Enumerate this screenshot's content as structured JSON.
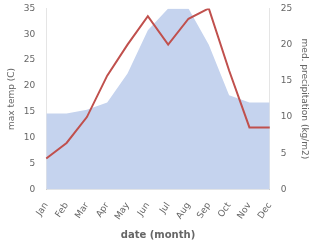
{
  "chart_data": {
    "type": "line",
    "categories": [
      "Jan",
      "Feb",
      "Mar",
      "Apr",
      "May",
      "Jun",
      "Jul",
      "Aug",
      "Sep",
      "Oct",
      "Nov",
      "Dec"
    ],
    "series": [
      {
        "type": "area",
        "color": "#c5d3ee",
        "axis": "y2",
        "values": [
          10.5,
          10.5,
          11.0,
          12.0,
          16.0,
          22.0,
          25.0,
          25.0,
          20.0,
          13.0,
          12.0,
          12.0
        ]
      },
      {
        "type": "line",
        "color": "#c0504d",
        "values": [
          6,
          9,
          14,
          22,
          28,
          33.5,
          28,
          33,
          35,
          23,
          12,
          12
        ]
      }
    ],
    "xlabel": "date (month)",
    "ylabel": "max temp (C)",
    "y2label": "med. precipitation (kg/m2)",
    "ylim": [
      0,
      35
    ],
    "yticks": [
      0,
      5,
      10,
      15,
      20,
      25,
      30,
      35
    ],
    "y2lim": [
      0,
      25
    ],
    "y2ticks": [
      0,
      5,
      10,
      15,
      20,
      25
    ],
    "grid": false,
    "legend": false
  }
}
